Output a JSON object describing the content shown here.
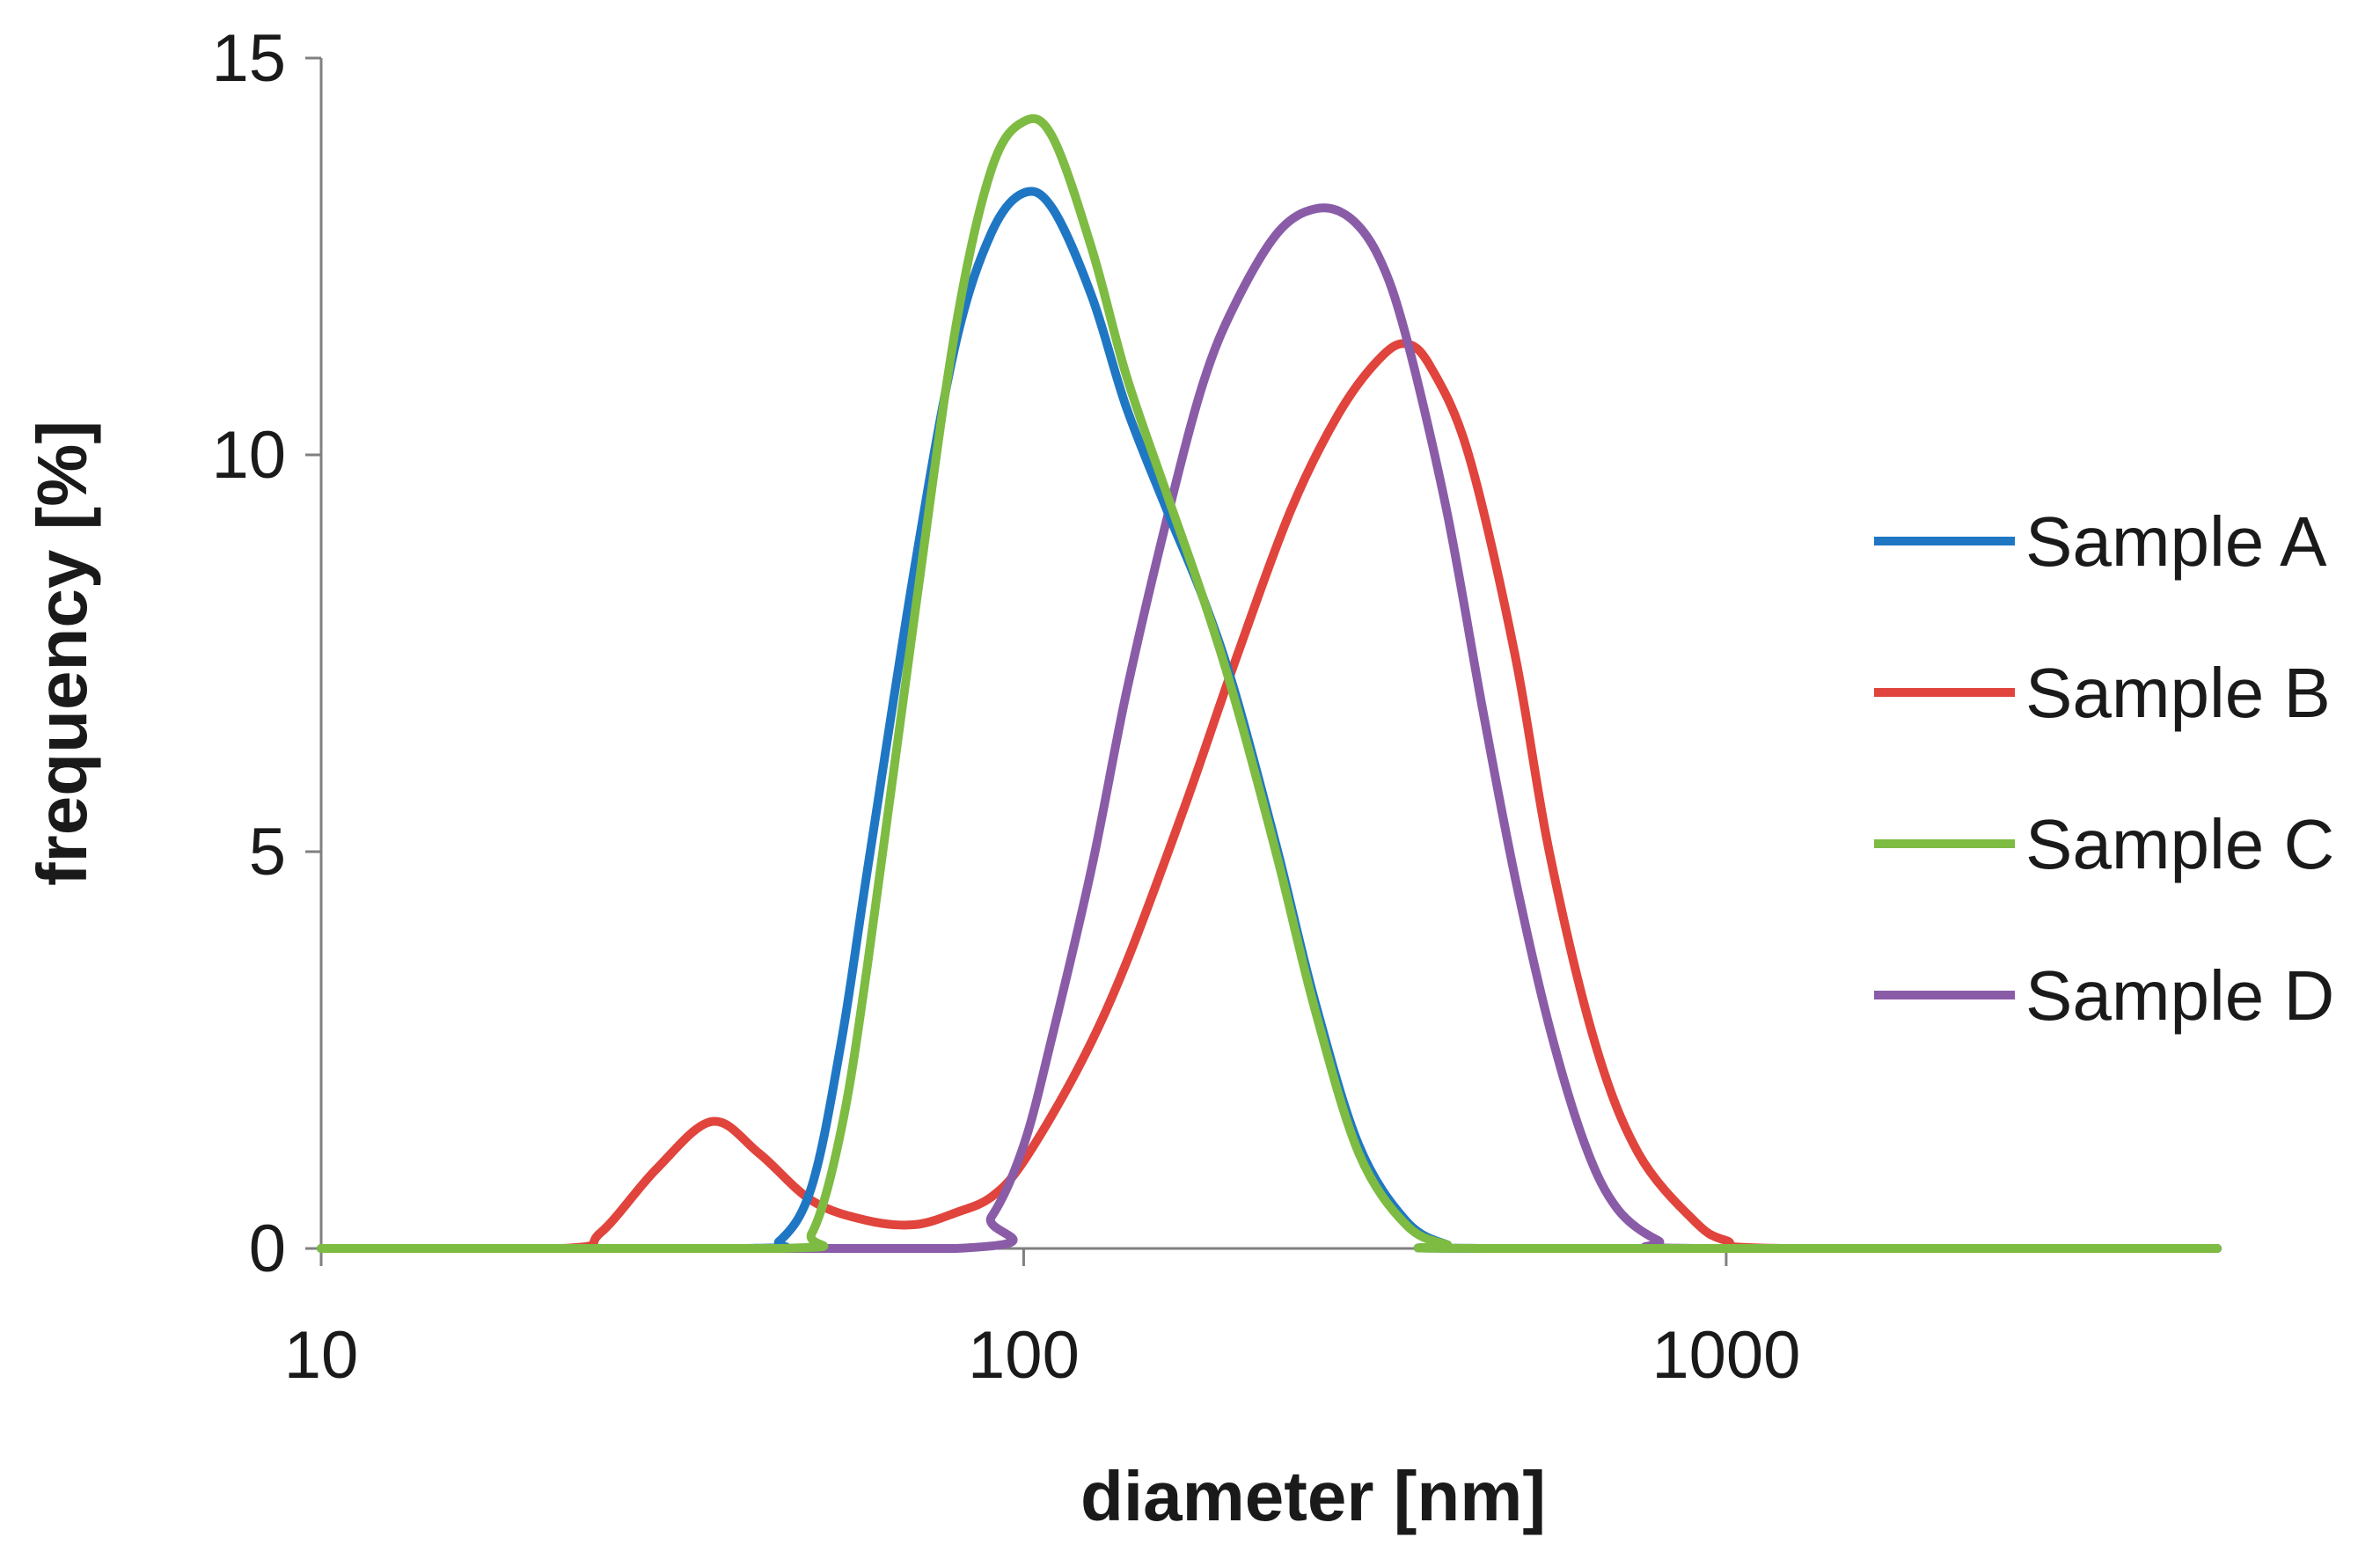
{
  "chart_data": {
    "type": "line",
    "title": "",
    "xlabel": "diameter [nm]",
    "ylabel": "frequency [%]",
    "x_scale": "log",
    "xlim": [
      10,
      5000
    ],
    "ylim": [
      0,
      15
    ],
    "x_ticks": [
      10,
      100,
      1000
    ],
    "x_tick_labels": [
      "10",
      "100",
      "1000"
    ],
    "y_ticks": [
      0,
      5,
      10,
      15
    ],
    "y_tick_labels": [
      "0",
      "5",
      "10",
      "15"
    ],
    "grid": false,
    "legend_position": "right",
    "series": [
      {
        "name": "Sample A",
        "color": "#1f77c4",
        "points": [
          [
            10,
            0
          ],
          [
            40,
            0
          ],
          [
            45,
            0.1
          ],
          [
            50,
            0.8
          ],
          [
            55,
            2.6
          ],
          [
            60,
            4.8
          ],
          [
            70,
            8.6
          ],
          [
            80,
            11.4
          ],
          [
            90,
            12.8
          ],
          [
            100,
            13.3
          ],
          [
            110,
            13.1
          ],
          [
            125,
            12.0
          ],
          [
            140,
            10.6
          ],
          [
            160,
            9.3
          ],
          [
            180,
            8.2
          ],
          [
            200,
            7.0
          ],
          [
            230,
            5.0
          ],
          [
            260,
            3.1
          ],
          [
            300,
            1.3
          ],
          [
            350,
            0.35
          ],
          [
            400,
            0.05
          ],
          [
            450,
            0
          ],
          [
            5000,
            0
          ]
        ]
      },
      {
        "name": "Sample B",
        "color": "#e0443c",
        "points": [
          [
            10,
            0
          ],
          [
            22,
            0
          ],
          [
            25,
            0.2
          ],
          [
            30,
            1.0
          ],
          [
            36,
            1.6
          ],
          [
            42,
            1.2
          ],
          [
            50,
            0.6
          ],
          [
            60,
            0.35
          ],
          [
            70,
            0.3
          ],
          [
            80,
            0.45
          ],
          [
            90,
            0.65
          ],
          [
            100,
            1.1
          ],
          [
            120,
            2.3
          ],
          [
            140,
            3.6
          ],
          [
            170,
            5.6
          ],
          [
            200,
            7.4
          ],
          [
            240,
            9.3
          ],
          [
            280,
            10.5
          ],
          [
            320,
            11.2
          ],
          [
            350,
            11.4
          ],
          [
            380,
            11.1
          ],
          [
            430,
            10.0
          ],
          [
            500,
            7.5
          ],
          [
            560,
            5.0
          ],
          [
            650,
            2.6
          ],
          [
            750,
            1.2
          ],
          [
            900,
            0.35
          ],
          [
            1000,
            0.1
          ],
          [
            1200,
            0
          ],
          [
            5000,
            0
          ]
        ]
      },
      {
        "name": "Sample C",
        "color": "#7dbb42",
        "points": [
          [
            10,
            0
          ],
          [
            45,
            0
          ],
          [
            50,
            0.2
          ],
          [
            55,
            1.5
          ],
          [
            60,
            3.6
          ],
          [
            70,
            8.0
          ],
          [
            80,
            11.6
          ],
          [
            90,
            13.6
          ],
          [
            100,
            14.2
          ],
          [
            110,
            14.0
          ],
          [
            125,
            12.6
          ],
          [
            140,
            11.0
          ],
          [
            160,
            9.5
          ],
          [
            180,
            8.2
          ],
          [
            200,
            6.9
          ],
          [
            230,
            4.9
          ],
          [
            260,
            3.0
          ],
          [
            300,
            1.2
          ],
          [
            350,
            0.3
          ],
          [
            400,
            0.05
          ],
          [
            450,
            0
          ],
          [
            5000,
            0
          ]
        ]
      },
      {
        "name": "Sample D",
        "color": "#8a5ca8",
        "points": [
          [
            10,
            0
          ],
          [
            80,
            0
          ],
          [
            90,
            0.4
          ],
          [
            100,
            1.3
          ],
          [
            110,
            2.7
          ],
          [
            125,
            4.8
          ],
          [
            140,
            7.0
          ],
          [
            160,
            9.2
          ],
          [
            180,
            10.9
          ],
          [
            200,
            11.9
          ],
          [
            230,
            12.8
          ],
          [
            260,
            13.1
          ],
          [
            290,
            13.0
          ],
          [
            320,
            12.5
          ],
          [
            350,
            11.5
          ],
          [
            400,
            9.3
          ],
          [
            450,
            6.8
          ],
          [
            500,
            4.7
          ],
          [
            560,
            2.8
          ],
          [
            630,
            1.3
          ],
          [
            700,
            0.5
          ],
          [
            800,
            0.1
          ],
          [
            900,
            0
          ],
          [
            5000,
            0
          ]
        ]
      }
    ]
  }
}
